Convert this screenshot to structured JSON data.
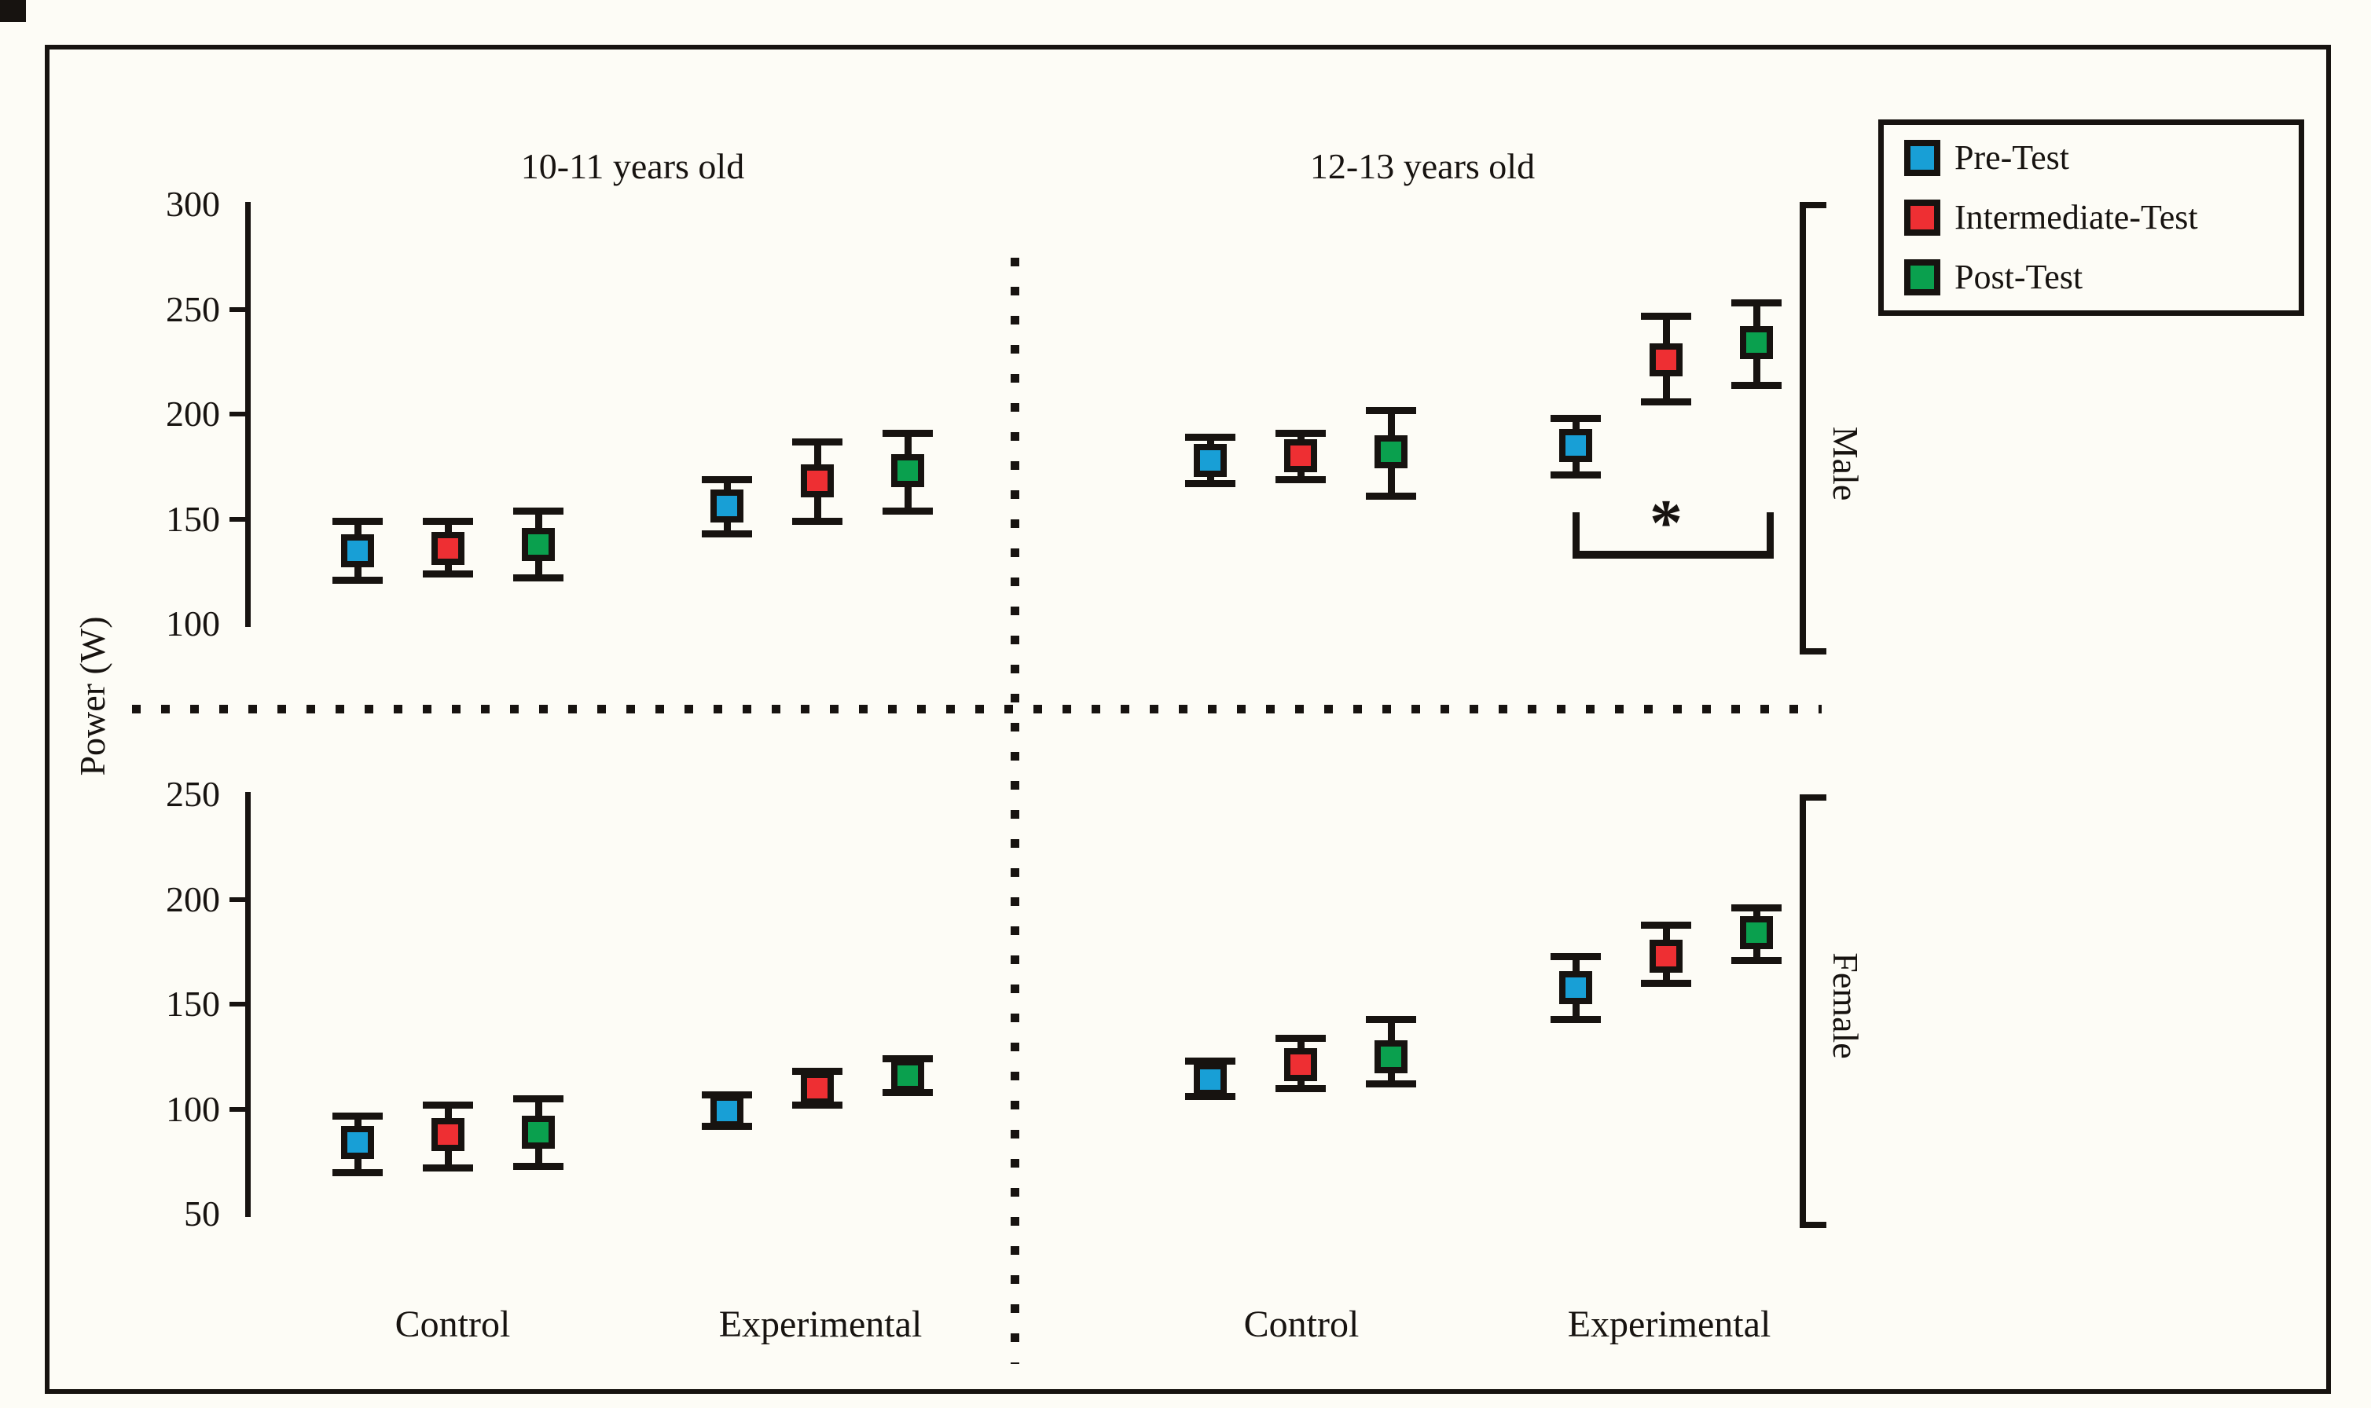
{
  "figure": {
    "ylabel": "Power (W)",
    "age_titles": [
      "10-11 years old",
      "12-13 years old"
    ],
    "x_labels": [
      "Control",
      "Experimental",
      "Control",
      "Experimental"
    ],
    "panel_labels": [
      "Male",
      "Female"
    ],
    "significance_marker": "*",
    "colors": {
      "background": "#FDFCF6",
      "ink": "#171310",
      "pre_test": "#189FD6",
      "intermediate_test": "#EE2F33",
      "post_test": "#0AA04E"
    }
  },
  "legend": {
    "items": [
      {
        "label": "Pre-Test",
        "color": "#189FD6"
      },
      {
        "label": "Intermediate-Test",
        "color": "#EE2F33"
      },
      {
        "label": "Post-Test",
        "color": "#0AA04E"
      }
    ]
  },
  "chart_data": {
    "type": "scatter",
    "marker": "square-with-error-bars",
    "ylabel": "Power (W)",
    "series": [
      {
        "name": "Pre-Test",
        "color": "#189FD6"
      },
      {
        "name": "Intermediate-Test",
        "color": "#EE2F33"
      },
      {
        "name": "Post-Test",
        "color": "#0AA04E"
      }
    ],
    "age_titles": [
      "10-11 years old",
      "12-13 years old"
    ],
    "x_labels": [
      "Control",
      "Experimental",
      "Control",
      "Experimental"
    ],
    "panels": [
      {
        "name": "Male",
        "ylim": [
          100,
          300
        ],
        "yticks": [
          300,
          250,
          200,
          150,
          100
        ],
        "groups": [
          {
            "age": "10-11 years old",
            "condition": "Control",
            "points": [
              {
                "value": 135,
                "err_low": 121,
                "err_high": 149
              },
              {
                "value": 136,
                "err_low": 124,
                "err_high": 149
              },
              {
                "value": 138,
                "err_low": 122,
                "err_high": 154
              }
            ]
          },
          {
            "age": "10-11 years old",
            "condition": "Experimental",
            "points": [
              {
                "value": 156,
                "err_low": 143,
                "err_high": 169
              },
              {
                "value": 168,
                "err_low": 149,
                "err_high": 187
              },
              {
                "value": 173,
                "err_low": 154,
                "err_high": 191
              }
            ]
          },
          {
            "age": "12-13 years old",
            "condition": "Control",
            "points": [
              {
                "value": 178,
                "err_low": 167,
                "err_high": 189
              },
              {
                "value": 180,
                "err_low": 169,
                "err_high": 191
              },
              {
                "value": 182,
                "err_low": 161,
                "err_high": 202
              }
            ]
          },
          {
            "age": "12-13 years old",
            "condition": "Experimental",
            "significance": "*",
            "points": [
              {
                "value": 185,
                "err_low": 171,
                "err_high": 198
              },
              {
                "value": 226,
                "err_low": 206,
                "err_high": 247
              },
              {
                "value": 234,
                "err_low": 214,
                "err_high": 253
              }
            ]
          }
        ]
      },
      {
        "name": "Female",
        "ylim": [
          50,
          250
        ],
        "yticks": [
          250,
          200,
          150,
          100,
          50
        ],
        "groups": [
          {
            "age": "10-11 years old",
            "condition": "Control",
            "points": [
              {
                "value": 84,
                "err_low": 70,
                "err_high": 97
              },
              {
                "value": 88,
                "err_low": 72,
                "err_high": 102
              },
              {
                "value": 89,
                "err_low": 73,
                "err_high": 105
              }
            ]
          },
          {
            "age": "10-11 years old",
            "condition": "Experimental",
            "points": [
              {
                "value": 99,
                "err_low": 92,
                "err_high": 107
              },
              {
                "value": 110,
                "err_low": 102,
                "err_high": 118
              },
              {
                "value": 116,
                "err_low": 108,
                "err_high": 124
              }
            ]
          },
          {
            "age": "12-13 years old",
            "condition": "Control",
            "points": [
              {
                "value": 114,
                "err_low": 106,
                "err_high": 123
              },
              {
                "value": 121,
                "err_low": 110,
                "err_high": 134
              },
              {
                "value": 125,
                "err_low": 112,
                "err_high": 143
              }
            ]
          },
          {
            "age": "12-13 years old",
            "condition": "Experimental",
            "points": [
              {
                "value": 158,
                "err_low": 143,
                "err_high": 173
              },
              {
                "value": 173,
                "err_low": 160,
                "err_high": 188
              },
              {
                "value": 184,
                "err_low": 171,
                "err_high": 196
              }
            ]
          }
        ]
      }
    ],
    "layout_hints": {
      "legend_position": "top-right",
      "grid": false,
      "group_axis": "x",
      "panels_stacked": "vertically (Male top, Female bottom)",
      "dotted_separators": "vertical between age groups, horizontal between panels"
    }
  }
}
